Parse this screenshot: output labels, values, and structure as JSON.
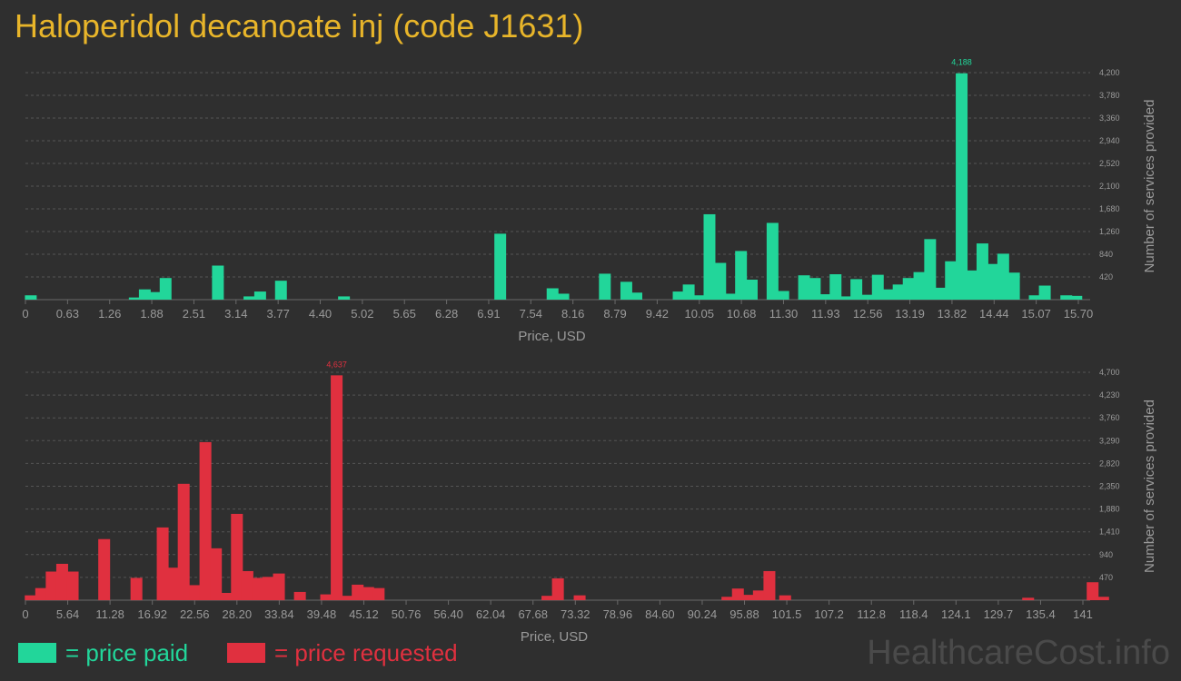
{
  "title": "Haloperidol decanoate inj (code J1631)",
  "colors": {
    "paid": "#22d69a",
    "requested": "#e0303f",
    "title": "#e8b52a"
  },
  "legend": {
    "paid_label": "= price paid",
    "requested_label": "= price requested"
  },
  "watermark": "HealthcareCost.info",
  "chart_data": [
    {
      "type": "bar",
      "series_name": "price paid",
      "xlabel": "Price, USD",
      "ylabel": "Number of services provided",
      "xlim": [
        0,
        15.7
      ],
      "ylim": [
        0,
        4200
      ],
      "x_tick_labels": [
        "0",
        "0.63",
        "1.26",
        "1.88",
        "2.51",
        "3.14",
        "3.77",
        "4.40",
        "5.02",
        "5.65",
        "6.28",
        "6.91",
        "7.54",
        "8.16",
        "8.79",
        "9.42",
        "10.05",
        "10.68",
        "11.30",
        "11.93",
        "12.56",
        "13.19",
        "13.82",
        "14.44",
        "15.07",
        "15.70"
      ],
      "y_tick_labels": [
        "420",
        "840",
        "1,260",
        "1,680",
        "2,100",
        "2,520",
        "2,940",
        "3,360",
        "3,780",
        "4,200"
      ],
      "peak_label": "4,188",
      "grid": true,
      "bins": [
        {
          "x": 0.08,
          "y": 80
        },
        {
          "x": 1.63,
          "y": 40
        },
        {
          "x": 1.78,
          "y": 190
        },
        {
          "x": 1.94,
          "y": 140
        },
        {
          "x": 2.09,
          "y": 400
        },
        {
          "x": 2.87,
          "y": 630
        },
        {
          "x": 3.34,
          "y": 60
        },
        {
          "x": 3.5,
          "y": 150
        },
        {
          "x": 3.81,
          "y": 350
        },
        {
          "x": 4.75,
          "y": 60
        },
        {
          "x": 7.08,
          "y": 1220
        },
        {
          "x": 7.86,
          "y": 210
        },
        {
          "x": 8.02,
          "y": 110
        },
        {
          "x": 8.64,
          "y": 480
        },
        {
          "x": 8.96,
          "y": 330
        },
        {
          "x": 9.11,
          "y": 130
        },
        {
          "x": 9.74,
          "y": 150
        },
        {
          "x": 9.89,
          "y": 280
        },
        {
          "x": 10.05,
          "y": 80
        },
        {
          "x": 10.2,
          "y": 1580
        },
        {
          "x": 10.36,
          "y": 680
        },
        {
          "x": 10.52,
          "y": 110
        },
        {
          "x": 10.67,
          "y": 900
        },
        {
          "x": 10.83,
          "y": 370
        },
        {
          "x": 11.14,
          "y": 1420
        },
        {
          "x": 11.3,
          "y": 160
        },
        {
          "x": 11.61,
          "y": 450
        },
        {
          "x": 11.77,
          "y": 400
        },
        {
          "x": 11.92,
          "y": 100
        },
        {
          "x": 12.08,
          "y": 470
        },
        {
          "x": 12.24,
          "y": 60
        },
        {
          "x": 12.39,
          "y": 380
        },
        {
          "x": 12.55,
          "y": 90
        },
        {
          "x": 12.71,
          "y": 460
        },
        {
          "x": 12.86,
          "y": 190
        },
        {
          "x": 13.02,
          "y": 280
        },
        {
          "x": 13.17,
          "y": 400
        },
        {
          "x": 13.33,
          "y": 510
        },
        {
          "x": 13.49,
          "y": 1120
        },
        {
          "x": 13.64,
          "y": 220
        },
        {
          "x": 13.8,
          "y": 710
        },
        {
          "x": 13.96,
          "y": 4188
        },
        {
          "x": 14.11,
          "y": 540
        },
        {
          "x": 14.27,
          "y": 1040
        },
        {
          "x": 14.42,
          "y": 660
        },
        {
          "x": 14.58,
          "y": 850
        },
        {
          "x": 14.74,
          "y": 500
        },
        {
          "x": 15.05,
          "y": 80
        },
        {
          "x": 15.2,
          "y": 260
        },
        {
          "x": 15.52,
          "y": 80
        },
        {
          "x": 15.67,
          "y": 70
        }
      ]
    },
    {
      "type": "bar",
      "series_name": "price requested",
      "xlabel": "Price, USD",
      "ylabel": "Number of services provided",
      "xlim": [
        0,
        141
      ],
      "ylim": [
        0,
        4700
      ],
      "x_tick_labels": [
        "0",
        "5.64",
        "11.28",
        "16.92",
        "22.56",
        "28.20",
        "33.84",
        "39.48",
        "45.12",
        "50.76",
        "56.40",
        "62.04",
        "67.68",
        "73.32",
        "78.96",
        "84.60",
        "90.24",
        "95.88",
        "101.5",
        "107.2",
        "112.8",
        "118.4",
        "124.1",
        "129.7",
        "135.4",
        "141"
      ],
      "y_tick_labels": [
        "470",
        "940",
        "1,410",
        "1,880",
        "2,350",
        "2,820",
        "3,290",
        "3,760",
        "4,230",
        "4,700"
      ],
      "peak_label": "4,637",
      "grid": true,
      "bins": [
        {
          "x": 0.7,
          "y": 100
        },
        {
          "x": 2.1,
          "y": 250
        },
        {
          "x": 3.5,
          "y": 590
        },
        {
          "x": 4.9,
          "y": 750
        },
        {
          "x": 6.3,
          "y": 590
        },
        {
          "x": 10.5,
          "y": 1260
        },
        {
          "x": 14.8,
          "y": 460
        },
        {
          "x": 18.3,
          "y": 1500
        },
        {
          "x": 19.7,
          "y": 670
        },
        {
          "x": 21.1,
          "y": 2400
        },
        {
          "x": 22.6,
          "y": 310
        },
        {
          "x": 24.0,
          "y": 3260
        },
        {
          "x": 25.4,
          "y": 1070
        },
        {
          "x": 26.8,
          "y": 150
        },
        {
          "x": 28.2,
          "y": 1780
        },
        {
          "x": 29.6,
          "y": 600
        },
        {
          "x": 31.0,
          "y": 460
        },
        {
          "x": 32.4,
          "y": 480
        },
        {
          "x": 33.8,
          "y": 550
        },
        {
          "x": 36.6,
          "y": 170
        },
        {
          "x": 40.1,
          "y": 120
        },
        {
          "x": 41.5,
          "y": 4637
        },
        {
          "x": 42.9,
          "y": 90
        },
        {
          "x": 44.3,
          "y": 320
        },
        {
          "x": 45.7,
          "y": 270
        },
        {
          "x": 47.1,
          "y": 250
        },
        {
          "x": 69.6,
          "y": 90
        },
        {
          "x": 71.0,
          "y": 450
        },
        {
          "x": 73.9,
          "y": 100
        },
        {
          "x": 93.6,
          "y": 70
        },
        {
          "x": 95.0,
          "y": 240
        },
        {
          "x": 96.4,
          "y": 110
        },
        {
          "x": 97.8,
          "y": 200
        },
        {
          "x": 99.2,
          "y": 600
        },
        {
          "x": 101.3,
          "y": 100
        },
        {
          "x": 133.7,
          "y": 50
        },
        {
          "x": 142.3,
          "y": 370
        },
        {
          "x": 143.7,
          "y": 70
        }
      ]
    }
  ]
}
